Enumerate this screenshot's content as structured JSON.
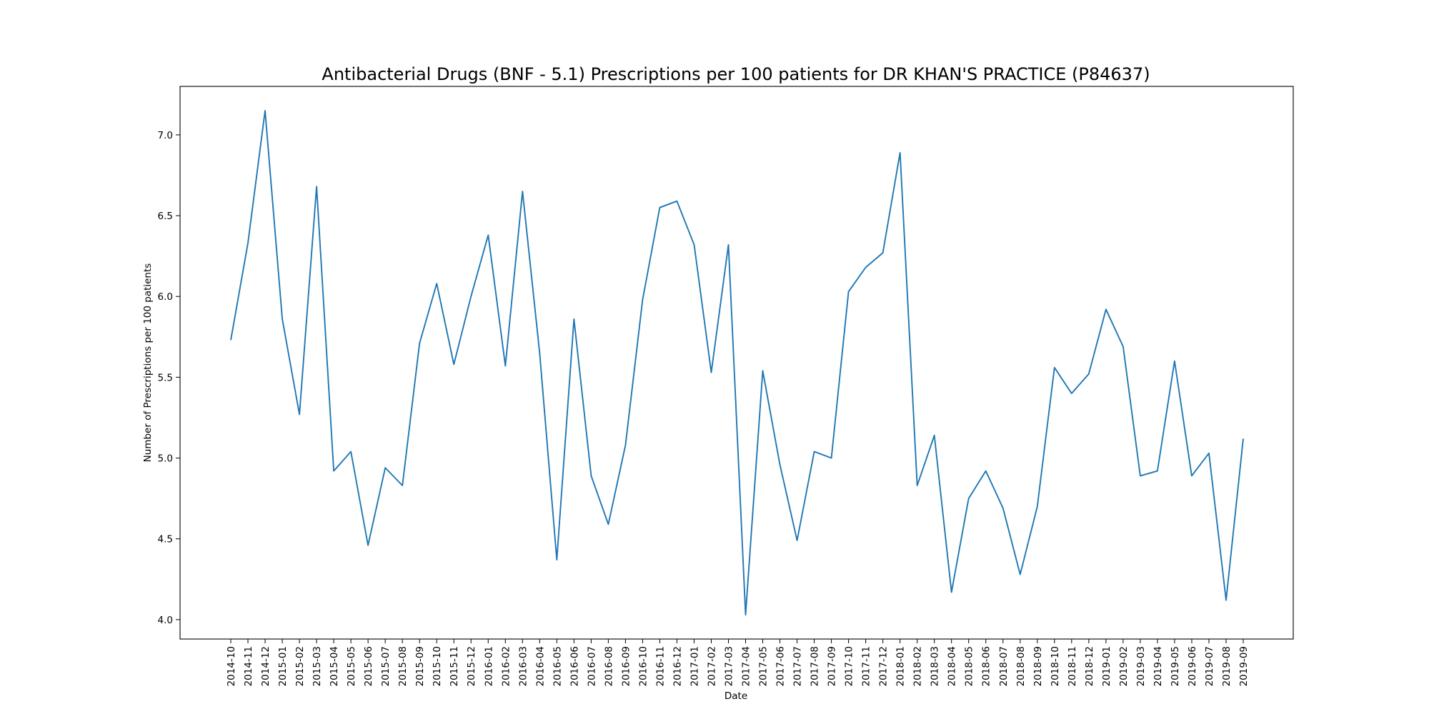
{
  "chart_data": {
    "type": "line",
    "title": "Antibacterial Drugs (BNF - 5.1) Prescriptions per 100 patients for DR KHAN'S PRACTICE (P84637)",
    "xlabel": "Date",
    "ylabel": "Number of Prescriptions per 100 patients",
    "ylim": [
      3.88,
      7.3
    ],
    "yticks": [
      "4.0",
      "4.5",
      "5.0",
      "5.5",
      "6.0",
      "6.5",
      "7.0"
    ],
    "grid": false,
    "line_color": "#1f77b4",
    "x": [
      "2014-10",
      "2014-11",
      "2014-12",
      "2015-01",
      "2015-02",
      "2015-03",
      "2015-04",
      "2015-05",
      "2015-06",
      "2015-07",
      "2015-08",
      "2015-09",
      "2015-10",
      "2015-11",
      "2015-12",
      "2016-01",
      "2016-02",
      "2016-03",
      "2016-04",
      "2016-05",
      "2016-06",
      "2016-07",
      "2016-08",
      "2016-09",
      "2016-10",
      "2016-11",
      "2016-12",
      "2017-01",
      "2017-02",
      "2017-03",
      "2017-04",
      "2017-05",
      "2017-06",
      "2017-07",
      "2017-08",
      "2017-09",
      "2017-10",
      "2017-11",
      "2017-12",
      "2018-01",
      "2018-02",
      "2018-03",
      "2018-04",
      "2018-05",
      "2018-06",
      "2018-07",
      "2018-08",
      "2018-09",
      "2018-10",
      "2018-11",
      "2018-12",
      "2019-01",
      "2019-02",
      "2019-03",
      "2019-04",
      "2019-05",
      "2019-06",
      "2019-07",
      "2019-08",
      "2019-09"
    ],
    "values": [
      5.73,
      6.33,
      7.15,
      5.86,
      5.27,
      6.68,
      4.92,
      5.04,
      4.46,
      4.94,
      4.83,
      5.71,
      6.08,
      5.58,
      6.0,
      6.38,
      5.57,
      6.65,
      5.65,
      4.37,
      5.86,
      4.89,
      4.59,
      5.08,
      5.98,
      6.55,
      6.59,
      6.32,
      5.53,
      6.32,
      4.03,
      5.54,
      4.96,
      4.49,
      5.04,
      5.0,
      6.03,
      6.18,
      6.27,
      6.89,
      4.83,
      5.14,
      4.17,
      4.75,
      4.92,
      4.69,
      4.28,
      4.7,
      5.56,
      5.4,
      5.52,
      5.92,
      5.69,
      4.89,
      4.92,
      5.6,
      4.89,
      5.03,
      4.12,
      5.12
    ]
  }
}
